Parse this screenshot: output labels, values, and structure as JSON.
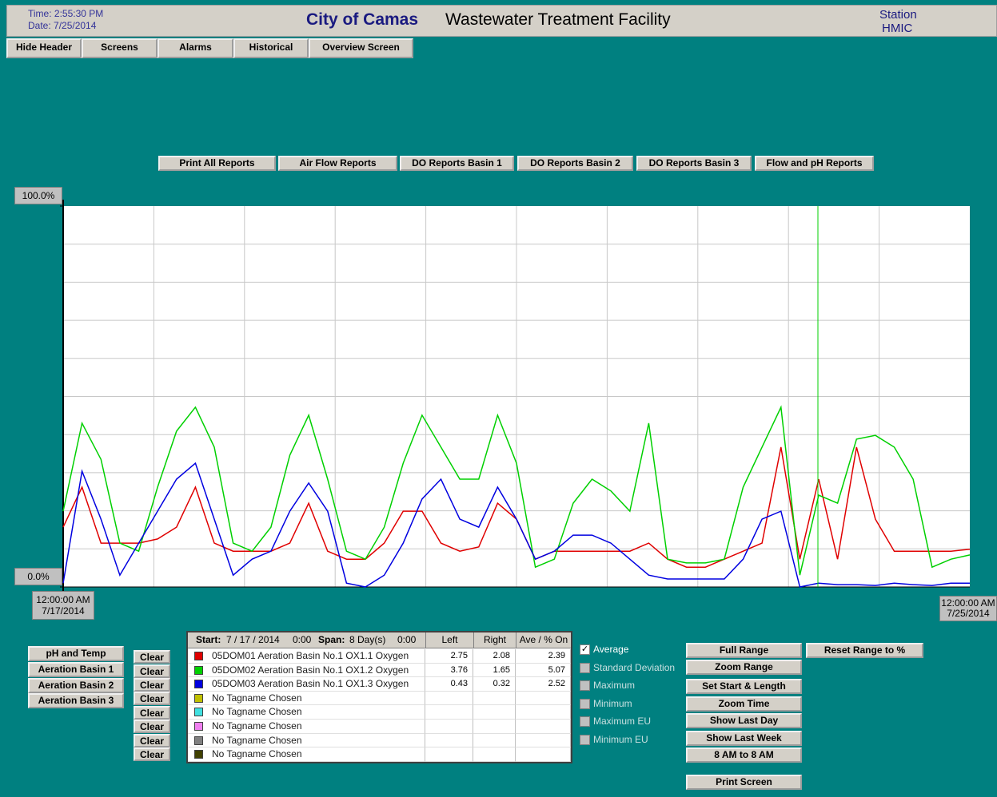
{
  "header": {
    "time": "Time: 2:55:30 PM",
    "date": "Date: 7/25/2014",
    "title_bold": "City of Camas",
    "title": "Wastewater Treatment Facility",
    "station": "Station",
    "station_name": "HMIC"
  },
  "menu": [
    "Hide Header",
    "Screens",
    "Alarms",
    "Historical",
    "Overview Screen"
  ],
  "reports": [
    "Print All Reports",
    "Air Flow Reports",
    "DO Reports Basin 1",
    "DO Reports Basin 2",
    "DO Reports Basin 3",
    "Flow and pH Reports"
  ],
  "trend": {
    "ylim": [
      0,
      100
    ],
    "yticks": [
      {
        "value": 100,
        "label": "100.0%"
      },
      {
        "value": 0,
        "label": "0.0%"
      }
    ],
    "x_start": {
      "time": "12:00:00 AM",
      "date": "7/17/2014"
    },
    "x_end": {
      "time": "12:00:00 AM",
      "date": "7/25/2014"
    },
    "series": [
      {
        "name": "05DOM01 Aeration Basin No.1 OX1.1 Oxygen",
        "color": "#e00000",
        "left": 2.75,
        "right": 2.08,
        "ave": 2.39,
        "values": [
          15.7,
          26.2,
          11.5,
          11.5,
          11.5,
          12.6,
          15.7,
          26.2,
          11.5,
          9.4,
          9.4,
          9.4,
          11.5,
          22.0,
          9.4,
          7.3,
          7.3,
          11.5,
          19.9,
          19.9,
          11.5,
          9.4,
          10.5,
          22.0,
          17.8,
          7.3,
          9.4,
          9.4,
          9.4,
          9.4,
          9.4,
          11.5,
          7.3,
          5.2,
          5.2,
          7.3,
          9.4,
          11.5,
          36.7,
          7.3,
          28.3,
          7.3,
          36.7,
          17.8,
          9.4,
          9.4,
          9.4,
          9.4,
          9.9
        ]
      },
      {
        "name": "05DOM02 Aeration Basin No.1 OX1.2 Oxygen",
        "color": "#00d000",
        "left": 3.76,
        "right": 1.65,
        "ave": 5.07,
        "values": [
          19.9,
          43.0,
          33.5,
          11.5,
          9.4,
          26.2,
          40.9,
          47.2,
          36.7,
          11.5,
          9.4,
          15.7,
          34.6,
          45.1,
          28.3,
          9.4,
          7.3,
          15.7,
          32.5,
          45.1,
          36.7,
          28.3,
          28.3,
          45.1,
          32.5,
          5.2,
          7.3,
          22.0,
          28.3,
          25.2,
          19.9,
          43.0,
          7.3,
          6.3,
          6.3,
          7.3,
          26.2,
          36.7,
          47.2,
          3.1,
          24.1,
          22.0,
          38.8,
          39.8,
          36.7,
          28.3,
          5.2,
          7.3,
          8.4
        ]
      },
      {
        "name": "05DOM03 Aeration Basin No.1 OX1.3 Oxygen",
        "color": "#0000e0",
        "left": 0.43,
        "right": 0.32,
        "ave": 2.52,
        "values": [
          1.0,
          30.4,
          17.8,
          3.1,
          11.5,
          19.9,
          28.3,
          32.5,
          17.8,
          3.1,
          7.3,
          9.4,
          19.9,
          27.3,
          19.9,
          1.0,
          0,
          3.1,
          11.5,
          23.1,
          28.3,
          17.8,
          15.7,
          26.2,
          17.8,
          7.3,
          9.4,
          13.6,
          13.6,
          11.5,
          7.3,
          3.1,
          2.1,
          2.1,
          2.1,
          2.1,
          7.3,
          17.8,
          19.9,
          0,
          1.0,
          0.6,
          0.6,
          0.4,
          1.0,
          0.6,
          0.4,
          1.0,
          1.0
        ]
      },
      {
        "name": "No Tagname Chosen",
        "color": "#c0c000"
      },
      {
        "name": "No Tagname Chosen",
        "color": "#40e0e0"
      },
      {
        "name": "No Tagname Chosen",
        "color": "#f080f0"
      },
      {
        "name": "No Tagname Chosen",
        "color": "#808080"
      },
      {
        "name": "No Tagname Chosen",
        "color": "#404000"
      }
    ]
  },
  "table": {
    "start_label": "Start:",
    "start": "7 / 17 / 2014",
    "start_time": "0:00",
    "span_label": "Span:",
    "span": "8 Day(s)",
    "span_time": "0:00",
    "columns": [
      "Left",
      "Right",
      "Ave / % On"
    ]
  },
  "group_buttons": [
    "pH and Temp",
    "Aeration Basin 1",
    "Aeration Basin 2",
    "Aeration Basin 3"
  ],
  "clear_buttons": [
    "Clear",
    "Clear",
    "Clear",
    "Clear",
    "Clear",
    "Clear",
    "Clear",
    "Clear"
  ],
  "options": [
    {
      "label": "Average",
      "checked": true
    },
    {
      "label": "Standard Deviation",
      "checked": false
    },
    {
      "label": "Maximum",
      "checked": false
    },
    {
      "label": "Minimum",
      "checked": false
    },
    {
      "label": "Maximum EU",
      "checked": false
    },
    {
      "label": "Minimum EU",
      "checked": false
    }
  ],
  "range_buttons": [
    "Full Range",
    "Zoom Range",
    "Set Start & Length",
    "Zoom Time",
    "Show Last Day",
    "Show Last Week",
    "8 AM to 8 AM"
  ],
  "reset_button": "Reset Range to %",
  "print_button": "Print Screen"
}
